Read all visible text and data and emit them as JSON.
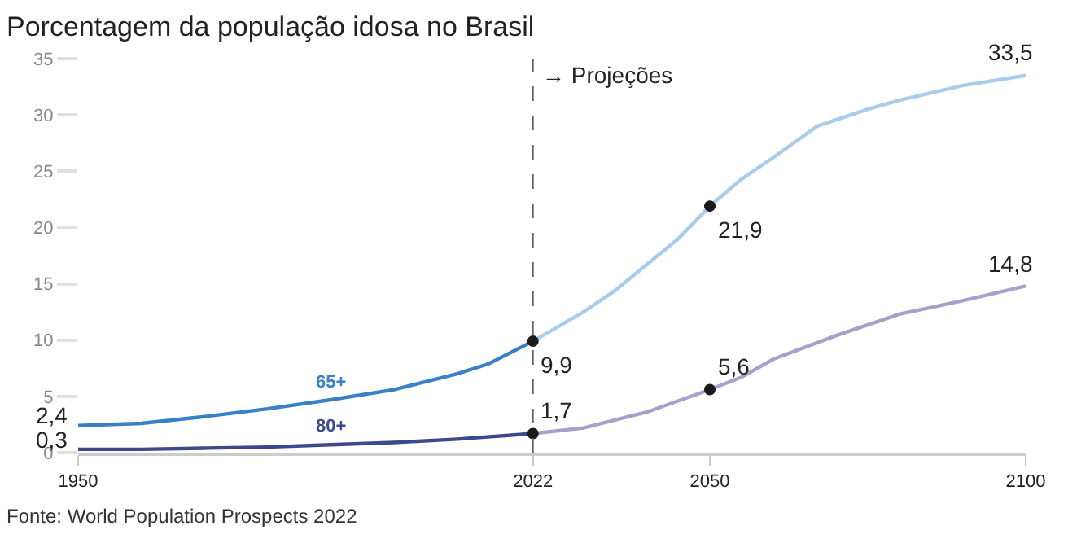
{
  "chart_data": {
    "type": "line",
    "title": "Porcentagem da população idosa no Brasil",
    "annotations": [
      "Fonte: World Population Prospects 2022"
    ],
    "series": [
      {
        "name": "65+",
        "color": "#3a80c6",
        "x": [
          1950,
          1960,
          1970,
          1980,
          1990,
          2000,
          2010,
          2015,
          2022
        ],
        "values": [
          2.4,
          2.6,
          3.2,
          3.9,
          4.7,
          5.6,
          7.0,
          7.9,
          9.9
        ],
        "value_labels": [
          "2,4",
          null,
          null,
          null,
          null,
          null,
          null,
          null,
          null
        ]
      },
      {
        "color": "#a9cbec",
        "x": [
          2022,
          2030,
          2035,
          2040,
          2045,
          2050,
          2055,
          2060,
          2067,
          2075,
          2080,
          2090,
          2100
        ],
        "values": [
          9.9,
          12.5,
          14.4,
          16.7,
          19.0,
          21.9,
          24.3,
          26.2,
          29.0,
          30.5,
          31.3,
          32.6,
          33.5
        ],
        "value_labels": [
          "9,9",
          null,
          null,
          null,
          null,
          "21,9",
          null,
          null,
          null,
          null,
          null,
          null,
          "33,5"
        ]
      },
      {
        "name": "80+",
        "color": "#3c4a8c",
        "x": [
          1950,
          1960,
          1970,
          1980,
          1990,
          2000,
          2010,
          2022
        ],
        "values": [
          0.3,
          0.3,
          0.4,
          0.5,
          0.7,
          0.9,
          1.2,
          1.7
        ],
        "value_labels": [
          "0,3",
          null,
          null,
          null,
          null,
          null,
          null,
          null
        ]
      },
      {
        "color": "#a7a0ca",
        "x": [
          2022,
          2030,
          2040,
          2050,
          2055,
          2060,
          2070,
          2080,
          2090,
          2100
        ],
        "values": [
          1.7,
          2.2,
          3.6,
          5.6,
          6.7,
          8.3,
          10.4,
          12.3,
          13.5,
          14.8
        ],
        "value_labels": [
          "1,7",
          null,
          null,
          "5,6",
          null,
          null,
          null,
          null,
          null,
          "14,8"
        ]
      },
      {
        "type": "scatter",
        "marker": "circle",
        "color": "#1a1a1a",
        "x": [
          2022,
          2050,
          2022,
          2050
        ],
        "values": [
          9.9,
          21.9,
          1.7,
          5.6
        ]
      }
    ],
    "xlim": [
      1950,
      2100
    ],
    "xticks": [
      1950,
      2022,
      2050,
      2100
    ],
    "ylim": [
      0,
      35
    ],
    "yticks": [
      0,
      5,
      10,
      15,
      20,
      25,
      30,
      35
    ],
    "ref_lines": [
      {
        "axis": "x",
        "value": 2022,
        "label": "→ Projeções",
        "color": "#666666",
        "line_style": "dashed"
      }
    ],
    "legend": false
  }
}
